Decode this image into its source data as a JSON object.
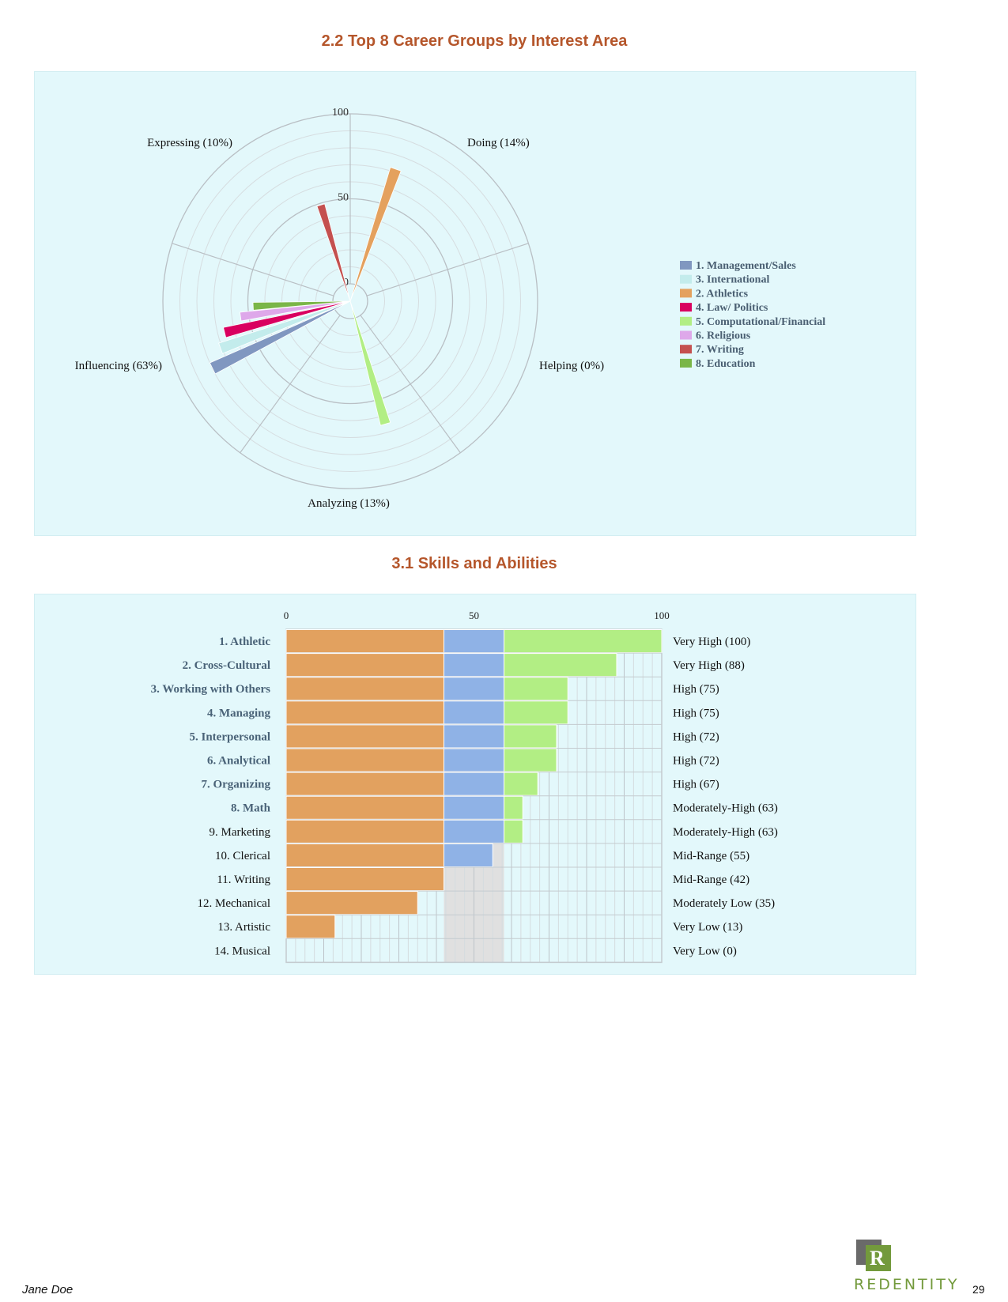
{
  "chart_data": [
    {
      "type": "polar-bar",
      "title": "2.2 Top 8 Career Groups by Interest Area",
      "radial_axis": {
        "range": [
          0,
          100
        ],
        "tick_labels": [
          "0",
          "50",
          "100"
        ]
      },
      "sectors": [
        "Doing (14%)",
        "Helping (0%)",
        "Analyzing (13%)",
        "Influencing (63%)",
        "Expressing (10%)"
      ],
      "legend_position": "right",
      "series": [
        {
          "name": "1. Management/Sales",
          "sector": "Influencing (63%)",
          "value": 80,
          "color": "#8097c0"
        },
        {
          "name": "3. International",
          "sector": "Influencing (63%)",
          "value": 71,
          "color": "#c3ecec"
        },
        {
          "name": "2. Athletics",
          "sector": "Doing (14%)",
          "value": 72,
          "color": "#e4a15e"
        },
        {
          "name": "4. Law/ Politics",
          "sector": "Influencing (63%)",
          "value": 66,
          "color": "#d9005f"
        },
        {
          "name": "5. Computational/Financial",
          "sector": "Analyzing (13%)",
          "value": 65,
          "color": "#b2ee84"
        },
        {
          "name": "6. Religious",
          "sector": "Influencing (63%)",
          "value": 55,
          "color": "#dea8ea"
        },
        {
          "name": "7. Writing",
          "sector": "Expressing (10%)",
          "value": 49,
          "color": "#c4504f"
        },
        {
          "name": "8. Education",
          "sector": "Influencing (63%)",
          "value": 47,
          "color": "#7ab648"
        }
      ]
    },
    {
      "type": "bar",
      "orientation": "horizontal",
      "title": "3.1 Skills and Abilities",
      "xlim": [
        0,
        100
      ],
      "tick_labels": [
        "0",
        "50",
        "100"
      ],
      "bands": [
        {
          "from": 0,
          "to": 42,
          "color": "#e2a15f"
        },
        {
          "from": 42,
          "to": 58,
          "color": "#8fb2e6"
        },
        {
          "from": 58,
          "to": 100,
          "color": "#b2ee84"
        }
      ],
      "mid_band_background": "#e0e0e0",
      "categories": [
        "1. Athletic",
        "2. Cross-Cultural",
        "3. Working with Others",
        "4. Managing",
        "5. Interpersonal",
        "6. Analytical",
        "7. Organizing",
        "8. Math",
        "9. Marketing",
        "10. Clerical",
        "11. Writing",
        "12. Mechanical",
        "13. Artistic",
        "14. Musical"
      ],
      "highlighted": [
        true,
        true,
        true,
        true,
        true,
        true,
        true,
        true,
        false,
        false,
        false,
        false,
        false,
        false
      ],
      "values": [
        100,
        88,
        75,
        75,
        72,
        72,
        67,
        63,
        63,
        55,
        42,
        35,
        13,
        0
      ],
      "value_labels": [
        "Very High (100)",
        "Very High (88)",
        "High (75)",
        "High (75)",
        "High (72)",
        "High (72)",
        "High (67)",
        "Moderately-High (63)",
        "Moderately-High (63)",
        "Mid-Range (55)",
        "Mid-Range (42)",
        "Moderately Low (35)",
        "Very Low (13)",
        "Very Low (0)"
      ]
    }
  ],
  "footer": {
    "name": "Jane Doe",
    "page": "29",
    "logo_text": "REDENTITY",
    "logo_letter": "R"
  }
}
